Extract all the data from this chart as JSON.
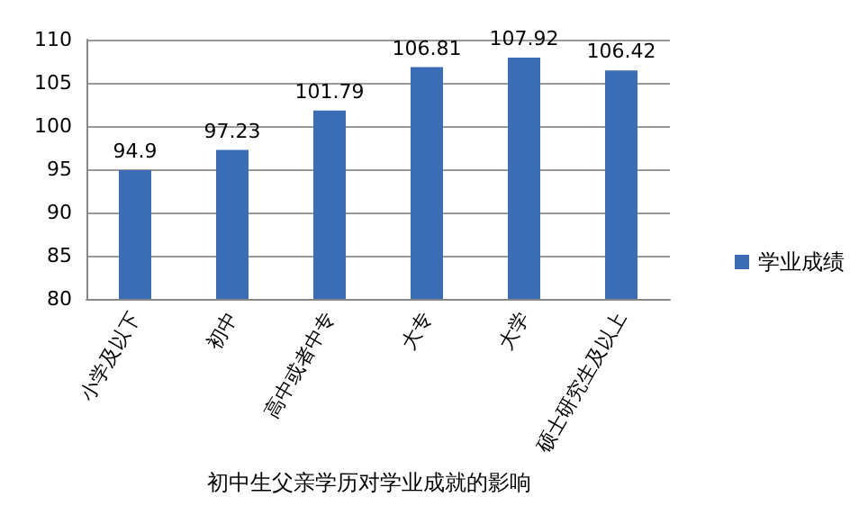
{
  "chart_data": {
    "type": "bar",
    "title": "初中生父亲学历对学业成就的影响",
    "categories": [
      "小学及以下",
      "初中",
      "高中或者中专",
      "大专",
      "大学",
      "硕士研究生及以上"
    ],
    "series": [
      {
        "name": "学业成绩",
        "color": "#3a6db5",
        "values": [
          94.9,
          97.23,
          101.79,
          106.81,
          107.92,
          106.42
        ]
      }
    ],
    "ylim": [
      80,
      110
    ],
    "yticks": [
      80,
      85,
      90,
      95,
      100,
      105,
      110
    ],
    "grid": "y",
    "legend": "right",
    "data_labels": true
  }
}
